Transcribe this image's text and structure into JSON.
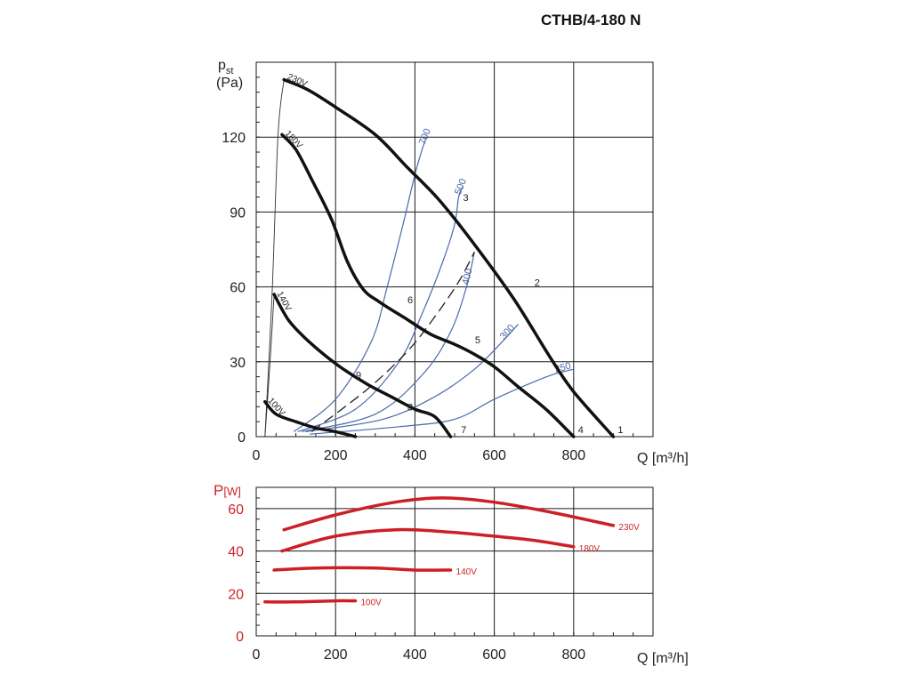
{
  "title": "CTHB/4-180 N",
  "chart_data": [
    {
      "type": "line",
      "ylabel_main": "p",
      "ylabel_sub": "st",
      "yunit": "(Pa)",
      "xlabel": "Q [m³/h]",
      "xlim": [
        0,
        1000
      ],
      "ylim": [
        0,
        150
      ],
      "xticks": [
        "0",
        "200",
        "400",
        "600",
        "800"
      ],
      "yticks": [
        "0",
        "30",
        "60",
        "90",
        "120"
      ],
      "series": [
        {
          "name": "230V",
          "x": [
            70,
            130,
            200,
            300,
            380,
            460,
            550,
            650,
            740,
            800,
            900
          ],
          "y": [
            143,
            139,
            132,
            121,
            108,
            95,
            77,
            55,
            32,
            18,
            0
          ]
        },
        {
          "name": "180V",
          "x": [
            65,
            100,
            140,
            190,
            230,
            270,
            310,
            380,
            440,
            500,
            550,
            600,
            660,
            730,
            800
          ],
          "y": [
            121,
            115,
            103,
            87,
            70,
            59,
            54,
            47,
            41,
            37,
            33,
            28,
            20,
            11,
            0
          ]
        },
        {
          "name": "140V",
          "x": [
            45,
            80,
            120,
            170,
            220,
            280,
            340,
            400,
            450,
            490
          ],
          "y": [
            57,
            47,
            40,
            33,
            27,
            21,
            16,
            11,
            8,
            0
          ]
        },
        {
          "name": "100V",
          "x": [
            22,
            50,
            100,
            150,
            200,
            250
          ],
          "y": [
            14,
            9,
            6,
            3.5,
            2,
            0
          ]
        }
      ],
      "system_curves": [
        {
          "label": "700",
          "x": [
            95,
            200,
            290,
            330,
            370,
            400,
            420,
            430
          ],
          "y": [
            2,
            15,
            38,
            60,
            85,
            105,
            116,
            120
          ]
        },
        {
          "label": "500",
          "x": [
            105,
            250,
            360,
            420,
            470,
            500,
            510,
            520
          ],
          "y": [
            2,
            11,
            30,
            50,
            70,
            85,
            96,
            100
          ]
        },
        {
          "label": "400",
          "x": [
            115,
            300,
            420,
            490,
            530,
            550
          ],
          "y": [
            2,
            9,
            25,
            42,
            60,
            74
          ]
        },
        {
          "label": "300",
          "x": [
            125,
            320,
            450,
            550,
            620,
            660
          ],
          "y": [
            2,
            7,
            16,
            27,
            38,
            45
          ]
        },
        {
          "label": "250",
          "x": [
            135,
            360,
            500,
            600,
            700,
            750,
            800
          ],
          "y": [
            1,
            4,
            7,
            15,
            22,
            25,
            27
          ]
        }
      ],
      "dashed_curve": {
        "x": [
          140,
          280,
          380,
          450,
          510,
          550
        ],
        "y": [
          2,
          19,
          34,
          48,
          62,
          74
        ]
      },
      "origin_curves": {
        "x": [
          22,
          40,
          55,
          70
        ],
        "y": [
          0,
          57,
          121,
          143
        ]
      },
      "point_labels": [
        {
          "label": "1",
          "x": 900,
          "y": 0
        },
        {
          "label": "2",
          "x": 690,
          "y": 59
        },
        {
          "label": "3",
          "x": 510,
          "y": 93
        },
        {
          "label": "4",
          "x": 800,
          "y": 0
        },
        {
          "label": "5",
          "x": 540,
          "y": 36
        },
        {
          "label": "6",
          "x": 370,
          "y": 52
        },
        {
          "label": "7",
          "x": 505,
          "y": 0
        },
        {
          "label": "8",
          "x": 370,
          "y": 9
        },
        {
          "label": "9",
          "x": 240,
          "y": 22
        }
      ]
    },
    {
      "type": "line",
      "ylabel_main": "P",
      "yunit": "[W]",
      "xlabel": "Q [m³/h]",
      "xlim": [
        0,
        1000
      ],
      "ylim": [
        0,
        70
      ],
      "xticks": [
        "0",
        "200",
        "400",
        "600",
        "800"
      ],
      "yticks": [
        "0",
        "20",
        "40",
        "60"
      ],
      "series": [
        {
          "name": "230V",
          "x": [
            70,
            200,
            350,
            470,
            600,
            750,
            900
          ],
          "y": [
            50,
            57,
            63,
            65,
            63,
            58,
            52
          ]
        },
        {
          "name": "180V",
          "x": [
            65,
            200,
            350,
            480,
            600,
            700,
            800
          ],
          "y": [
            40,
            47,
            50,
            49,
            47,
            45,
            42
          ]
        },
        {
          "name": "140V",
          "x": [
            45,
            150,
            300,
            400,
            490
          ],
          "y": [
            31,
            32,
            32,
            31,
            31
          ]
        },
        {
          "name": "100V",
          "x": [
            22,
            100,
            200,
            250
          ],
          "y": [
            16,
            16,
            16.5,
            16.5
          ]
        }
      ]
    }
  ],
  "colors": {
    "curve": "#111111",
    "system": "#4a6aa8",
    "power": "#cc1f26"
  }
}
